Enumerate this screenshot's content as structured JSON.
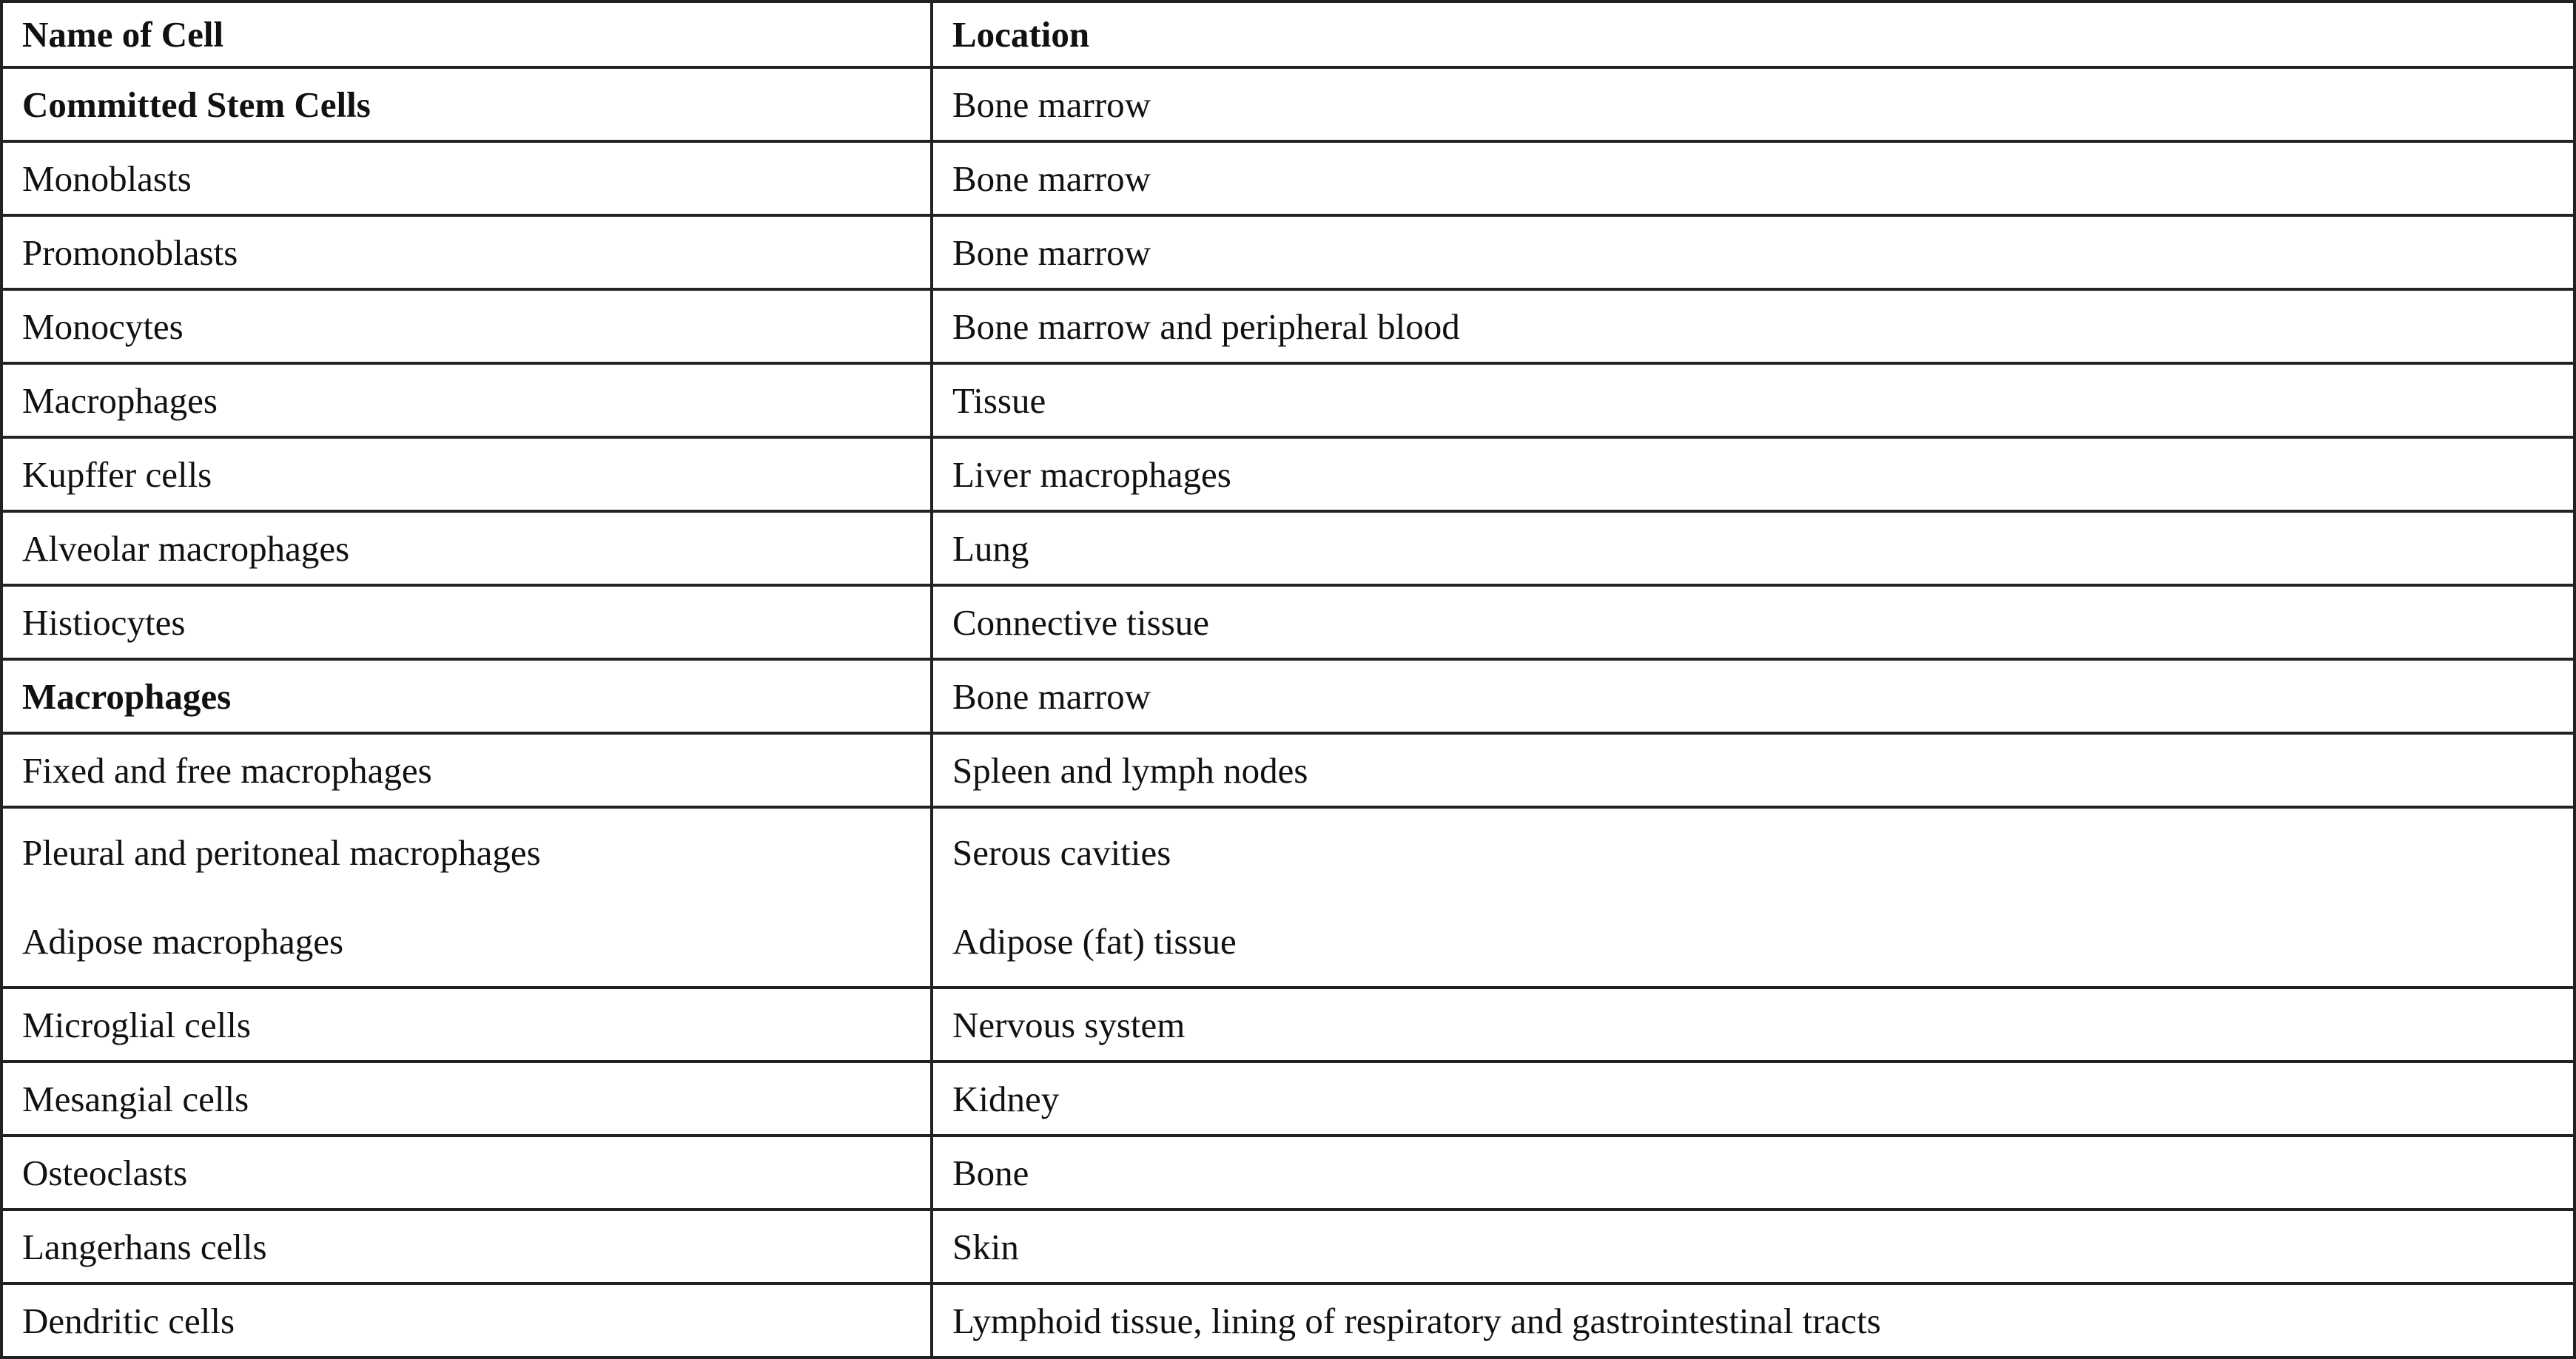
{
  "table": {
    "header": [
      "Name of Cell",
      "Location"
    ],
    "rows": [
      [
        "Committed Stem Cells",
        "Bone marrow"
      ],
      [
        "Monoblasts",
        "Bone marrow"
      ],
      [
        "Promonoblasts",
        "Bone marrow"
      ],
      [
        "Monocytes",
        "Bone marrow and peripheral blood"
      ],
      [
        "Macrophages",
        "Tissue"
      ],
      [
        "Kupffer cells",
        "Liver macrophages"
      ],
      [
        "Alveolar macrophages",
        "Lung"
      ],
      [
        "Histiocytes",
        "Connective tissue"
      ],
      [
        "Macrophages",
        "Bone marrow"
      ],
      [
        "Fixed and free macrophages",
        "Spleen and lymph nodes"
      ],
      [
        [
          "Pleural and peritoneal macrophages",
          "Adipose macrophages"
        ],
        [
          "Serous cavities",
          "Adipose (fat) tissue"
        ]
      ],
      [
        "Microglial cells",
        "Nervous system"
      ],
      [
        "Mesangial cells",
        "Kidney"
      ],
      [
        "Osteoclasts",
        "Bone"
      ],
      [
        "Langerhans cells",
        "Skin"
      ],
      [
        "Dendritic cells",
        "Lymphoid tissue, lining of respiratory and gastrointestinal tracts"
      ]
    ]
  }
}
